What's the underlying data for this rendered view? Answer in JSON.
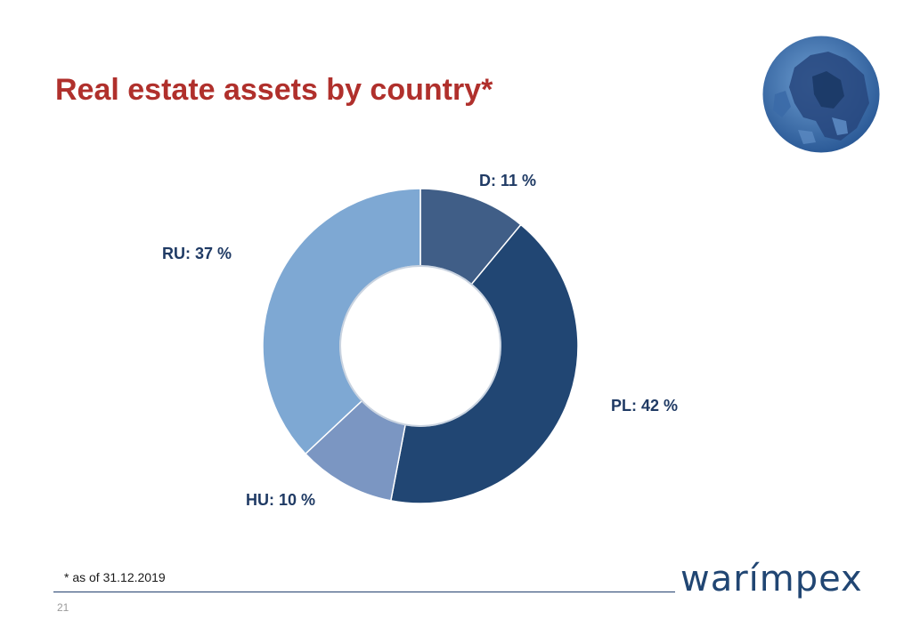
{
  "slide": {
    "title": "Real estate assets by country*",
    "footnote": "* as of 31.12.2019",
    "page_number": "21",
    "logo_text": "warímpex"
  },
  "colors": {
    "title": "#b0302c",
    "D": "#405e87",
    "PL": "#214673",
    "HU": "#7b96c2",
    "RU": "#7ea8d3",
    "label": "#1f3a64"
  },
  "chart_data": {
    "type": "pie",
    "donut": true,
    "title": "",
    "slices": [
      {
        "name": "D",
        "value": 11,
        "label": "D: 11 %",
        "color": "#405e87"
      },
      {
        "name": "PL",
        "value": 42,
        "label": "PL: 42 %",
        "color": "#214673"
      },
      {
        "name": "HU",
        "value": 10,
        "label": "HU: 10 %",
        "color": "#7b96c2"
      },
      {
        "name": "RU",
        "value": 37,
        "label": "RU:  37 %",
        "color": "#7ea8d3"
      }
    ]
  }
}
